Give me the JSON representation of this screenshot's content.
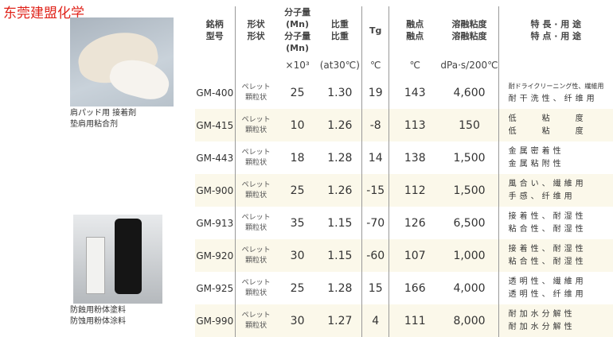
{
  "title": "东莞建盟化学",
  "captions": {
    "top": [
      "肩パッド用 接着剤",
      "垫肩用粘合剂"
    ],
    "bottom": [
      "防蝕用粉体塗料",
      "防蚀用粉体涂料"
    ]
  },
  "headers": [
    {
      "l1": "銘柄",
      "l2": "型号",
      "unit": ""
    },
    {
      "l1": "形状",
      "l2": "形状",
      "unit": ""
    },
    {
      "l1": "分子量(Mn)",
      "l2": "分子量(Mn)",
      "unit": "×10³"
    },
    {
      "l1": "比重",
      "l2": "比重",
      "unit": "(at30℃)"
    },
    {
      "l1": "Tg",
      "l2": "",
      "unit": "℃"
    },
    {
      "l1": "融点",
      "l2": "融点",
      "unit": "℃"
    },
    {
      "l1": "溶融粘度",
      "l2": "溶融粘度",
      "unit": "dPa·s/200℃"
    },
    {
      "l1": "特 長 · 用 途",
      "l2": "特 点 · 用 途",
      "unit": ""
    }
  ],
  "rows": [
    {
      "grade": "GM-400",
      "shape1": "ペレット",
      "shape2": "顆粒状",
      "mn": "25",
      "sg": "1.30",
      "tg": "19",
      "mp": "143",
      "visc": "4,600",
      "f1": "耐ドライクリーニング性、繊維用",
      "f2": "耐干洗性、纤维用"
    },
    {
      "grade": "GM-415",
      "shape1": "ペレット",
      "shape2": "顆粒状",
      "mn": "10",
      "sg": "1.26",
      "tg": "-8",
      "mp": "113",
      "visc": "150",
      "f1": "低　　粘　　度",
      "f2": "低　　粘　　度"
    },
    {
      "grade": "GM-443",
      "shape1": "ペレット",
      "shape2": "顆粒状",
      "mn": "18",
      "sg": "1.28",
      "tg": "14",
      "mp": "138",
      "visc": "1,500",
      "f1": "金属密着性",
      "f2": "金属粘附性"
    },
    {
      "grade": "GM-900",
      "shape1": "ペレット",
      "shape2": "顆粒状",
      "mn": "25",
      "sg": "1.26",
      "tg": "-15",
      "mp": "112",
      "visc": "1,500",
      "f1": "風合い、繊維用",
      "f2": "手感、纤维用"
    },
    {
      "grade": "GM-913",
      "shape1": "ペレット",
      "shape2": "顆粒状",
      "mn": "35",
      "sg": "1.15",
      "tg": "-70",
      "mp": "126",
      "visc": "6,500",
      "f1": "接着性、耐湿性",
      "f2": "粘合性、耐湿性"
    },
    {
      "grade": "GM-920",
      "shape1": "ペレット",
      "shape2": "顆粒状",
      "mn": "30",
      "sg": "1.15",
      "tg": "-60",
      "mp": "107",
      "visc": "1,000",
      "f1": "接着性、耐湿性",
      "f2": "粘合性、耐湿性"
    },
    {
      "grade": "GM-925",
      "shape1": "ペレット",
      "shape2": "顆粒状",
      "mn": "25",
      "sg": "1.28",
      "tg": "15",
      "mp": "166",
      "visc": "4,000",
      "f1": "透明性、繊維用",
      "f2": "透明性、纤维用"
    },
    {
      "grade": "GM-990",
      "shape1": "ペレット",
      "shape2": "顆粒状",
      "mn": "30",
      "sg": "1.27",
      "tg": "4",
      "mp": "111",
      "visc": "8,000",
      "f1": "耐加水分解性",
      "f2": "耐加水分解性"
    }
  ]
}
